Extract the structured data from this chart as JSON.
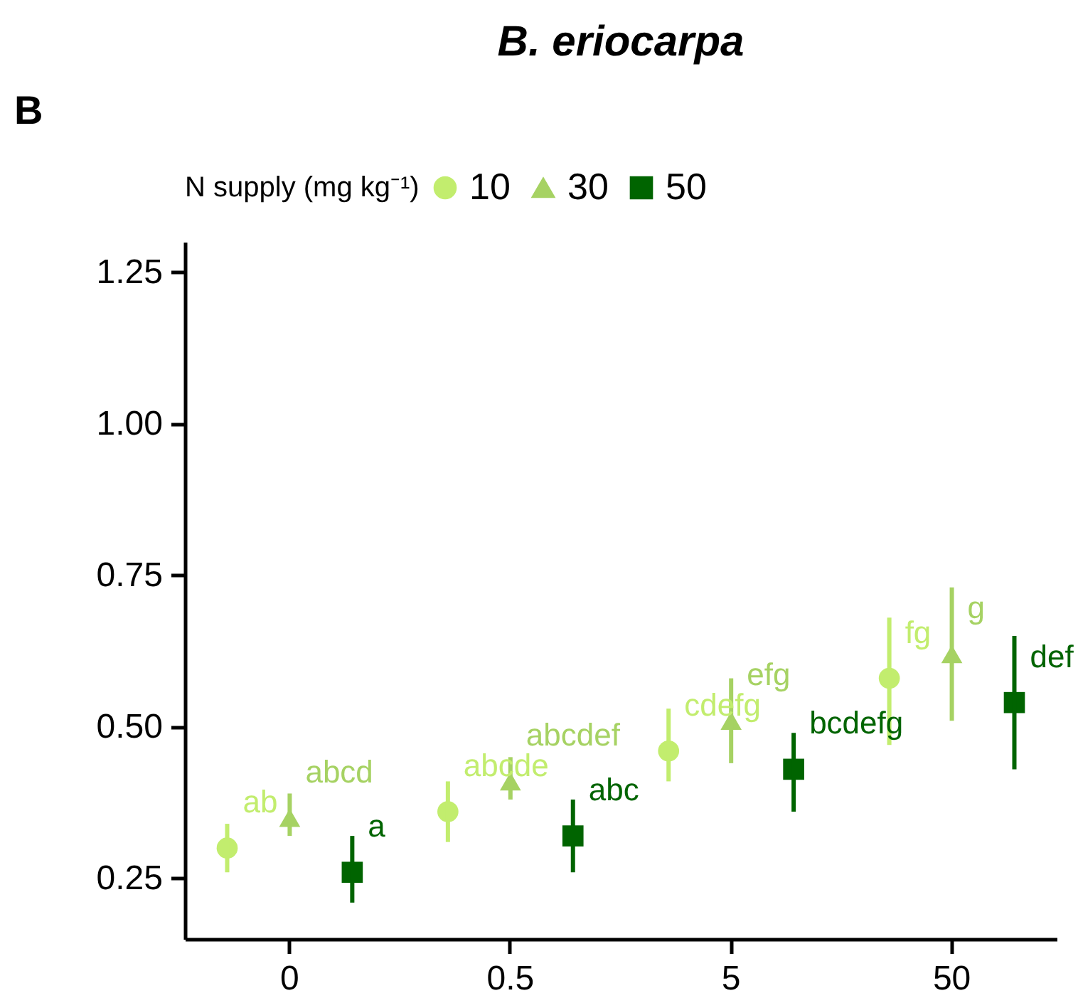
{
  "chart_data": {
    "type": "scatter",
    "title": "B. eriocarpa",
    "legend_title": "N supply (mg kg⁻¹)",
    "annotations": [
      "B"
    ],
    "categories": [
      "0",
      "0.5",
      "5",
      "50"
    ],
    "ylim": [
      0.15,
      1.3
    ],
    "yticks": [
      {
        "value": 0.25,
        "label": "0.25"
      },
      {
        "value": 0.5,
        "label": "0.50"
      },
      {
        "value": 0.75,
        "label": "0.75"
      },
      {
        "value": 1.0,
        "label": "1.00"
      },
      {
        "value": 1.25,
        "label": "1.25"
      }
    ],
    "grid": false,
    "legend": "top",
    "series": [
      {
        "name": "10",
        "color": "#c2ed6e",
        "marker": "circle",
        "values": [
          0.3,
          0.36,
          0.46,
          0.58
        ],
        "errors": [
          [
            0.26,
            0.34
          ],
          [
            0.31,
            0.41
          ],
          [
            0.41,
            0.53
          ],
          [
            0.47,
            0.68
          ]
        ],
        "value_labels": [
          "ab",
          "abcde",
          "cdefg",
          "fg"
        ]
      },
      {
        "name": "30",
        "color": "#a6d263",
        "marker": "triangle",
        "values": [
          0.35,
          0.41,
          0.51,
          0.62
        ],
        "errors": [
          [
            0.32,
            0.39
          ],
          [
            0.38,
            0.45
          ],
          [
            0.44,
            0.58
          ],
          [
            0.51,
            0.73
          ]
        ],
        "value_labels": [
          "abcd",
          "abcdef",
          "efg",
          "g"
        ]
      },
      {
        "name": "50",
        "color": "#006400",
        "marker": "square",
        "values": [
          0.26,
          0.32,
          0.43,
          0.54
        ],
        "errors": [
          [
            0.21,
            0.32
          ],
          [
            0.26,
            0.38
          ],
          [
            0.36,
            0.49
          ],
          [
            0.43,
            0.65
          ]
        ],
        "value_labels": [
          "a",
          "abc",
          "bcdefg",
          "def"
        ]
      }
    ]
  }
}
